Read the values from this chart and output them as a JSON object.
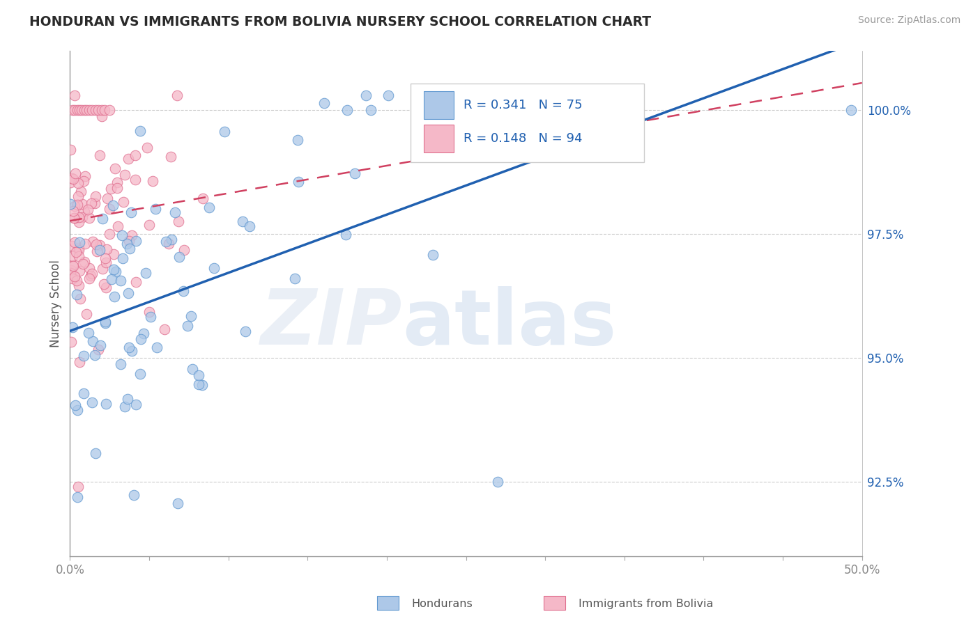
{
  "title": "HONDURAN VS IMMIGRANTS FROM BOLIVIA NURSERY SCHOOL CORRELATION CHART",
  "source": "Source: ZipAtlas.com",
  "ylabel": "Nursery School",
  "y_ticks": [
    92.5,
    95.0,
    97.5,
    100.0
  ],
  "y_tick_labels": [
    "92.5%",
    "95.0%",
    "97.5%",
    "100.0%"
  ],
  "xlim": [
    0.0,
    50.0
  ],
  "ylim": [
    91.0,
    101.2
  ],
  "legend_blue_label": "Hondurans",
  "legend_pink_label": "Immigrants from Bolivia",
  "R_blue": 0.341,
  "N_blue": 75,
  "R_pink": 0.148,
  "N_pink": 94,
  "blue_color": "#adc8e8",
  "blue_edge_color": "#6098d0",
  "blue_line_color": "#2060b0",
  "pink_color": "#f5b8c8",
  "pink_edge_color": "#e07090",
  "pink_line_color": "#d04060",
  "background_color": "#ffffff",
  "grid_color": "#cccccc",
  "text_color": "#555555",
  "tick_color": "#888888"
}
